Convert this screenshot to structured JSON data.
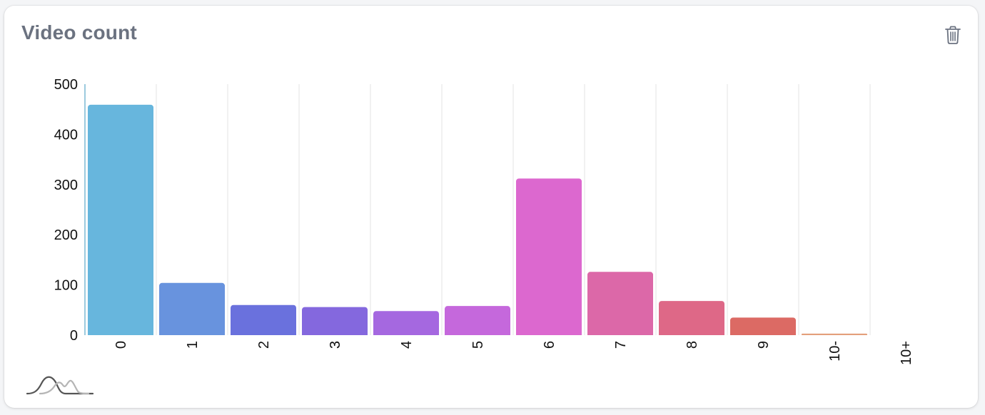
{
  "card": {
    "title": "Video count"
  },
  "icons": {
    "delete": "trash-icon",
    "distribution": "distribution-curve-icon"
  },
  "chart_data": {
    "type": "bar",
    "title": "Video count",
    "xlabel": "",
    "ylabel": "",
    "categories": [
      "0",
      "1",
      "2",
      "3",
      "4",
      "5",
      "6",
      "7",
      "8",
      "9",
      "10-",
      "10+"
    ],
    "values": [
      459,
      104,
      60,
      56,
      48,
      58,
      312,
      126,
      68,
      35,
      3,
      0
    ],
    "colors": [
      "#67b6dd",
      "#6893de",
      "#6a71dd",
      "#8468de",
      "#a568e0",
      "#c568dc",
      "#dc68cf",
      "#dc68a8",
      "#de6887",
      "#dc6a64",
      "#e4a07c",
      "#e4a07c"
    ],
    "ylim": [
      0,
      500
    ],
    "yticks": [
      0,
      100,
      200,
      300,
      400,
      500
    ],
    "grid": true
  }
}
